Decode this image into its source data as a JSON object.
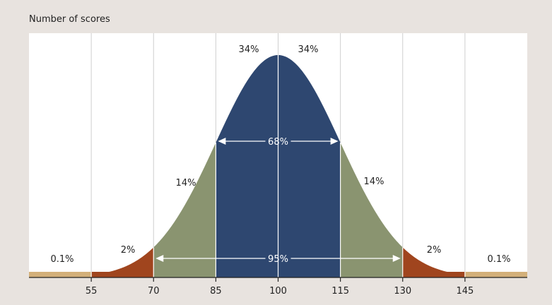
{
  "chart_data": {
    "type": "area",
    "title": "",
    "ylabel": "Number of scores",
    "xlabel": "",
    "mean": 100,
    "sd": 15,
    "xlim": [
      40,
      160
    ],
    "x_ticks": [
      "55",
      "70",
      "85",
      "100",
      "115",
      "130",
      "145"
    ],
    "bands": [
      {
        "name": "0.1%",
        "from": 40,
        "to": 55,
        "color": "#d3b07a"
      },
      {
        "name": "2%",
        "from": 55,
        "to": 70,
        "color": "#a0451e"
      },
      {
        "name": "14%",
        "from": 70,
        "to": 85,
        "color": "#8a9470"
      },
      {
        "name": "34%",
        "from": 85,
        "to": 100,
        "color": "#2e4770"
      },
      {
        "name": "34%",
        "from": 100,
        "to": 115,
        "color": "#2e4770"
      },
      {
        "name": "14%",
        "from": 115,
        "to": 130,
        "color": "#8a9470"
      },
      {
        "name": "2%",
        "from": 130,
        "to": 145,
        "color": "#a0451e"
      },
      {
        "name": "0.1%",
        "from": 145,
        "to": 160,
        "color": "#d3b07a"
      }
    ],
    "band_labels": [
      "0.1%",
      "2%",
      "14%",
      "34%",
      "34%",
      "14%",
      "2%",
      "0.1%"
    ],
    "annotations": [
      {
        "text": "68%",
        "from": 85,
        "to": 115
      },
      {
        "text": "95%",
        "from": 70,
        "to": 130
      }
    ],
    "grid": true
  }
}
